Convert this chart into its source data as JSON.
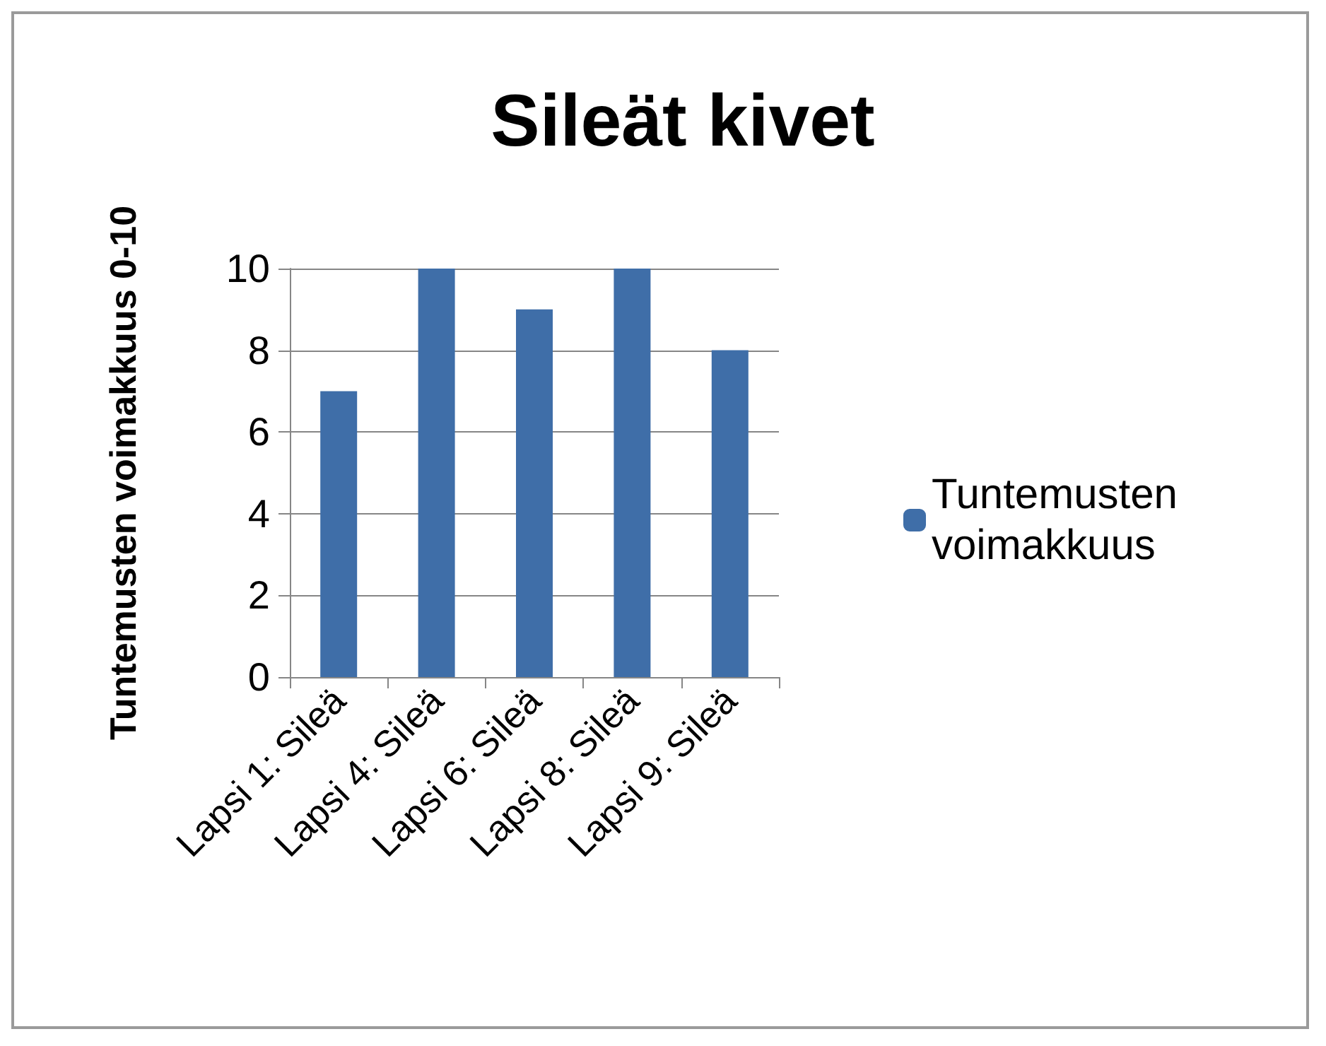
{
  "chart_data": {
    "type": "bar",
    "title": "Sileät kivet",
    "ylabel": "Tuntemusten voimakkuus 0-10",
    "categories": [
      "Lapsi 1: Sileä",
      "Lapsi 4: Sileä",
      "Lapsi 6: Sileä",
      "Lapsi 8: Sileä",
      "Lapsi 9: Sileä"
    ],
    "series": [
      {
        "name": "Tuntemusten voimakkuus",
        "color": "#3f6ea8",
        "values": [
          7,
          10,
          9,
          10,
          8
        ]
      }
    ],
    "ylim": [
      0,
      10
    ],
    "yticks": [
      0,
      2,
      4,
      6,
      8,
      10
    ],
    "grid": "y",
    "legend": "right"
  }
}
